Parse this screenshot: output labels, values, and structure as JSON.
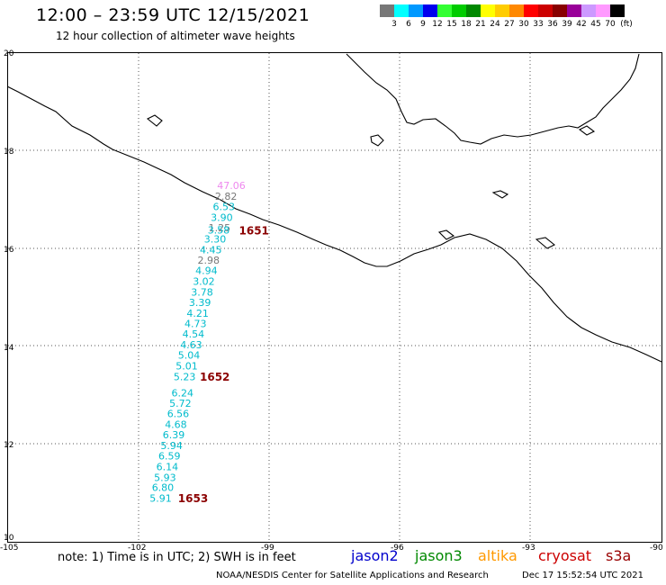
{
  "header": {
    "title": "12:00 – 23:59 UTC 12/15/2021",
    "subtitle": "12 hour collection of altimeter wave heights"
  },
  "scale": {
    "unit": "(ft)",
    "items": [
      {
        "color": "#777777",
        "label": "3"
      },
      {
        "color": "#00ffff",
        "label": "6"
      },
      {
        "color": "#0099ff",
        "label": "9"
      },
      {
        "color": "#0000ee",
        "label": "12"
      },
      {
        "color": "#33ff33",
        "label": "15"
      },
      {
        "color": "#00cc00",
        "label": "18"
      },
      {
        "color": "#008800",
        "label": "21"
      },
      {
        "color": "#ffff00",
        "label": "24"
      },
      {
        "color": "#ffcc00",
        "label": "27"
      },
      {
        "color": "#ff8800",
        "label": "30"
      },
      {
        "color": "#ff0000",
        "label": "33"
      },
      {
        "color": "#cc0000",
        "label": "36"
      },
      {
        "color": "#880000",
        "label": "39"
      },
      {
        "color": "#990099",
        "label": "42"
      },
      {
        "color": "#cc99ff",
        "label": "45"
      },
      {
        "color": "#ff99ff",
        "label": "70"
      },
      {
        "color": "#000000",
        "label": ""
      }
    ]
  },
  "axes": {
    "lon_ticks": [
      "-105",
      "-102",
      "-99",
      "-96",
      "-93",
      "-90"
    ],
    "lat_ticks": [
      "20",
      "18",
      "16",
      "14",
      "12",
      "10"
    ]
  },
  "wave_labels": [
    {
      "value": "47.06",
      "color": "#ee88ee",
      "lon": -100.2,
      "lat": 17.29
    },
    {
      "value": "2.82",
      "color": "#777777",
      "lon": -100.25,
      "lat": 17.07
    },
    {
      "value": "6.53",
      "color": "#00bbcc",
      "lon": -100.3,
      "lat": 16.86
    },
    {
      "value": "3.90",
      "color": "#00bbcc",
      "lon": -100.35,
      "lat": 16.64
    },
    {
      "value": "1.25",
      "color": "#777777",
      "lon": -100.4,
      "lat": 16.43
    },
    {
      "value": "3.58",
      "color": "#00bbcc",
      "lon": -100.42,
      "lat": 16.38
    },
    {
      "value": "3.30",
      "color": "#00bbcc",
      "lon": -100.5,
      "lat": 16.2
    },
    {
      "value": "4.45",
      "color": "#00bbcc",
      "lon": -100.6,
      "lat": 15.98
    },
    {
      "value": "2.98",
      "color": "#777777",
      "lon": -100.65,
      "lat": 15.76
    },
    {
      "value": "4.94",
      "color": "#00bbcc",
      "lon": -100.7,
      "lat": 15.55
    },
    {
      "value": "3.02",
      "color": "#00bbcc",
      "lon": -100.76,
      "lat": 15.33
    },
    {
      "value": "3.78",
      "color": "#00bbcc",
      "lon": -100.8,
      "lat": 15.11
    },
    {
      "value": "3.39",
      "color": "#00bbcc",
      "lon": -100.85,
      "lat": 14.9
    },
    {
      "value": "4.21",
      "color": "#00bbcc",
      "lon": -100.9,
      "lat": 14.68
    },
    {
      "value": "4.73",
      "color": "#00bbcc",
      "lon": -100.95,
      "lat": 14.47
    },
    {
      "value": "4.54",
      "color": "#00bbcc",
      "lon": -101.0,
      "lat": 14.25
    },
    {
      "value": "4.63",
      "color": "#00bbcc",
      "lon": -101.05,
      "lat": 14.03
    },
    {
      "value": "5.04",
      "color": "#00bbcc",
      "lon": -101.1,
      "lat": 13.82
    },
    {
      "value": "5.01",
      "color": "#00bbcc",
      "lon": -101.15,
      "lat": 13.6
    },
    {
      "value": "5.23",
      "color": "#00bbcc",
      "lon": -101.2,
      "lat": 13.38
    },
    {
      "value": "6.24",
      "color": "#00bbcc",
      "lon": -101.25,
      "lat": 13.05
    },
    {
      "value": "5.72",
      "color": "#00bbcc",
      "lon": -101.3,
      "lat": 12.84
    },
    {
      "value": "6.56",
      "color": "#00bbcc",
      "lon": -101.35,
      "lat": 12.62
    },
    {
      "value": "4.68",
      "color": "#00bbcc",
      "lon": -101.4,
      "lat": 12.4
    },
    {
      "value": "6.39",
      "color": "#00bbcc",
      "lon": -101.45,
      "lat": 12.19
    },
    {
      "value": "5.94",
      "color": "#00bbcc",
      "lon": -101.5,
      "lat": 11.97
    },
    {
      "value": "6.59",
      "color": "#00bbcc",
      "lon": -101.55,
      "lat": 11.76
    },
    {
      "value": "6.14",
      "color": "#00bbcc",
      "lon": -101.6,
      "lat": 11.54
    },
    {
      "value": "5.93",
      "color": "#00bbcc",
      "lon": -101.65,
      "lat": 11.32
    },
    {
      "value": "6.80",
      "color": "#00bbcc",
      "lon": -101.7,
      "lat": 11.11
    },
    {
      "value": "5.91",
      "color": "#00bbcc",
      "lon": -101.75,
      "lat": 10.89
    }
  ],
  "time_labels": [
    {
      "value": "1651",
      "color": "#8b0000",
      "lon": -99.7,
      "lat": 16.36
    },
    {
      "value": "1652",
      "color": "#8b0000",
      "lon": -100.6,
      "lat": 13.37
    },
    {
      "value": "1653",
      "color": "#8b0000",
      "lon": -101.1,
      "lat": 10.88
    }
  ],
  "footer": {
    "note": "note:  1) Time is in UTC;  2) SWH is in feet",
    "satellites": [
      {
        "name": "jason2",
        "color": "#0000cc"
      },
      {
        "name": "jason3",
        "color": "#008800"
      },
      {
        "name": "altika",
        "color": "#ff9900"
      },
      {
        "name": "cryosat",
        "color": "#cc0000"
      },
      {
        "name": "s3a",
        "color": "#990000"
      }
    ],
    "credit": "NOAA/NESDIS Center for Satellite Applications and Research",
    "timestamp": "Dec 17 15:52:54 UTC 2021"
  }
}
